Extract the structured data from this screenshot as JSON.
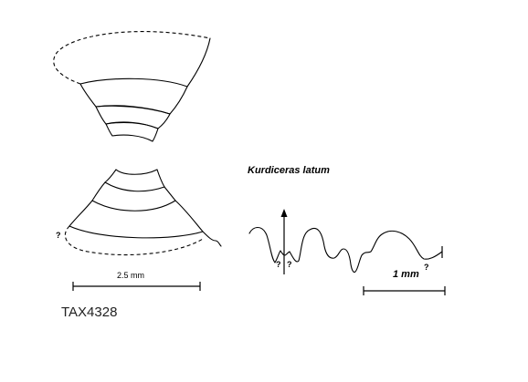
{
  "species_name": "Kurdiceras latum",
  "specimen_id": "TAX4328",
  "scale_bars": {
    "cross_section": "2.5 mm",
    "suture": "1 mm"
  },
  "uncertain_marks": {
    "whorl_section": "?",
    "suture_left_a": "?",
    "suture_left_b": "?",
    "suture_right": "?"
  },
  "colors": {
    "line": "#000000",
    "background": "#ffffff"
  }
}
